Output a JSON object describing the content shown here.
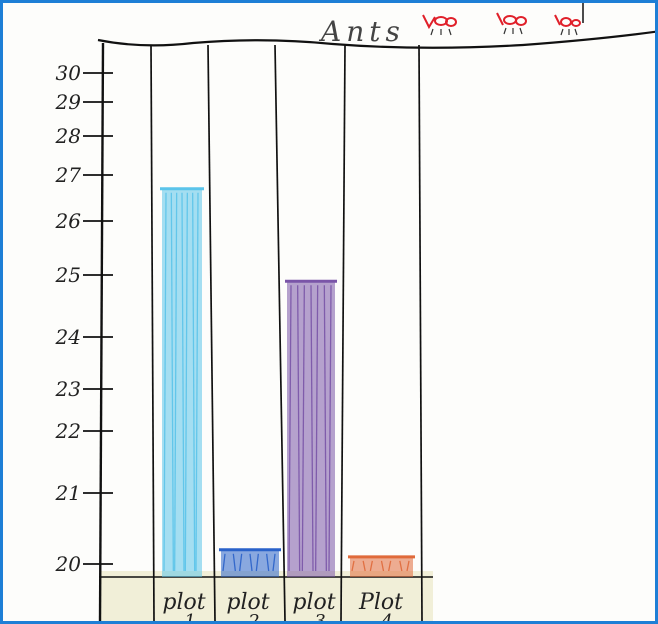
{
  "chart_data": {
    "type": "bar",
    "title": "Ants",
    "xlabel": "",
    "ylabel": "",
    "categories": [
      "plot 1",
      "plot 2",
      "plot 3",
      "plot 4"
    ],
    "category_lines": [
      [
        "plot",
        "1"
      ],
      [
        "plot",
        "2"
      ],
      [
        "plot",
        "3"
      ],
      [
        "Plot",
        "4"
      ]
    ],
    "values": [
      26.7,
      20.2,
      24.9,
      20.1
    ],
    "colors": [
      "#5bc4ea",
      "#2a62c9",
      "#7a55a8",
      "#e06a3a"
    ],
    "y_ticks": [
      "20",
      "21",
      "22",
      "23",
      "24",
      "25",
      "26",
      "27",
      "28",
      "29",
      "30"
    ],
    "ylim": [
      19.85,
      30
    ],
    "grid": false,
    "legend": "none"
  }
}
